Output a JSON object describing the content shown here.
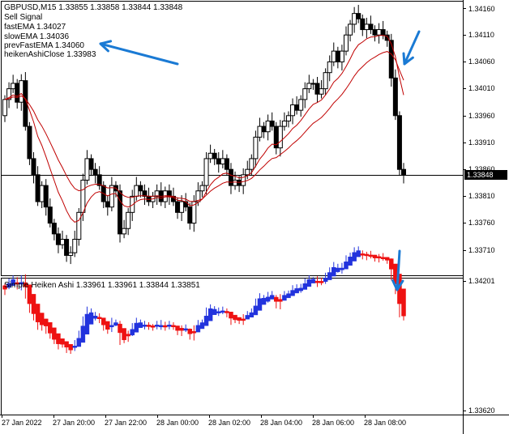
{
  "main_chart": {
    "header": "GBPUSD,M15  1.33855 1.33858 1.33844 1.33848",
    "legend": [
      "Sell Signal",
      "fastEMA 1.34027",
      "slowEMA 1.34036",
      "prevFastEMA 1.34060",
      "heikenAshiClose 1.33983"
    ],
    "price_axis": [
      "1.34160",
      "1.34110",
      "1.34060",
      "1.34010",
      "1.33960",
      "1.33910",
      "1.33860",
      "1.33810",
      "1.33760",
      "1.33710"
    ],
    "current_price": "1.33848"
  },
  "indicator_pane": {
    "header": "Simple Heiken Ashi 1.33961 1.33961 1.33844 1.33851",
    "price_axis": [
      "1.34201",
      "1.33620"
    ]
  },
  "time_axis": [
    "27 Jan 2022",
    "27 Jan 20:00",
    "27 Jan 22:00",
    "28 Jan 00:00",
    "28 Jan 02:00",
    "28 Jan 04:00",
    "28 Jan 06:00",
    "28 Jan 08:00"
  ],
  "colors": {
    "bull_candle": "#ffffff",
    "bear_candle": "#000000",
    "ema": "#c00000",
    "ha_bull": "#2233dd",
    "ha_bear": "#ee1111",
    "arrow": "#1a7ad4"
  },
  "chart_data": [
    {
      "type": "candlestick",
      "title": "GBPUSD,M15",
      "ylim": [
        1.3368,
        1.3418
      ],
      "x": [
        "27 Jan 2022",
        "27 Jan 20:00",
        "27 Jan 22:00",
        "28 Jan 00:00",
        "28 Jan 02:00",
        "28 Jan 04:00",
        "28 Jan 06:00",
        "28 Jan 08:00"
      ],
      "series": [
        {
          "name": "fastEMA",
          "last": 1.34027
        },
        {
          "name": "slowEMA",
          "last": 1.34036
        }
      ],
      "current": 1.33848
    },
    {
      "type": "bar",
      "title": "Simple Heiken Ashi",
      "ylim": [
        1.3362,
        1.342
      ],
      "values": [
        1.33961,
        1.33961,
        1.33844,
        1.33851
      ]
    }
  ]
}
